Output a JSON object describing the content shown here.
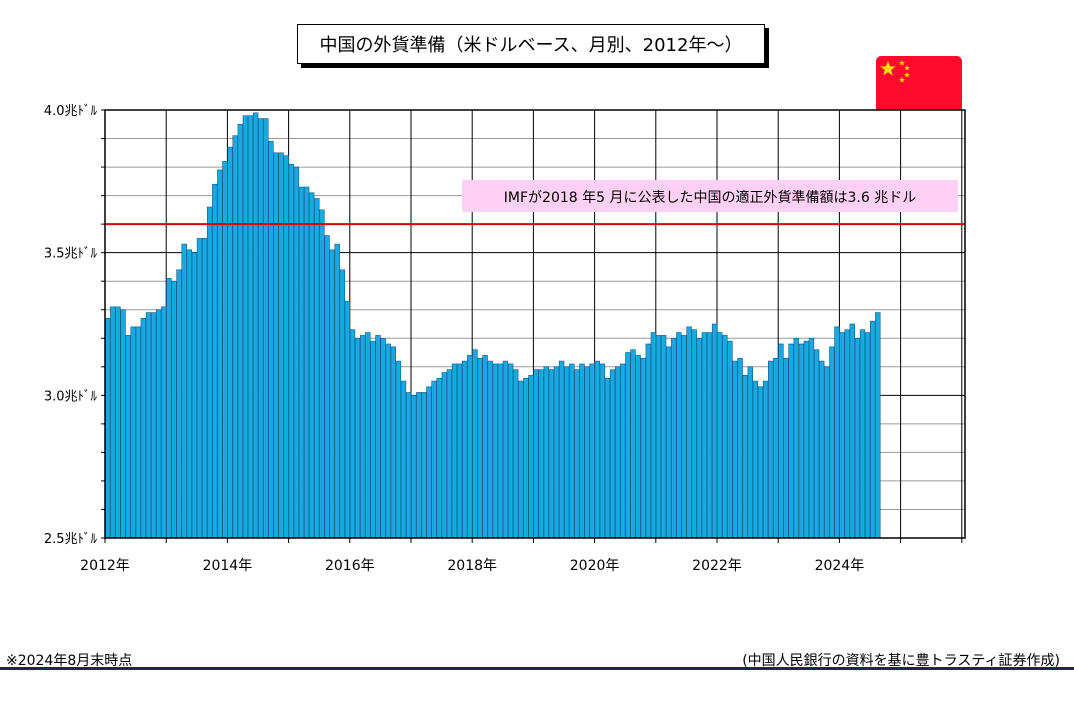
{
  "title": "中国の外貨準備（米ドルベース、月別、2012年〜）",
  "footnote": "※2024年8月末時点",
  "source": "(中国人民銀行の資料を基に豊トラスティ証券作成)",
  "colors": {
    "bar": "#1aa8e0",
    "bar_edge": "#0a5d8a",
    "ref_line": "#e00000",
    "annotation_bg": "#ffd0f5",
    "flag": "#ff0a2a",
    "flag_star": "#ffde00"
  },
  "chart_data": {
    "type": "bar",
    "title": "中国の外貨準備（米ドルベース、月別、2012年〜）",
    "xlabel": "",
    "ylabel": "",
    "ylim": [
      2.5,
      4.0
    ],
    "y_ticks": [
      {
        "value": 2.5,
        "label": "2.5兆ﾄﾞﾙ"
      },
      {
        "value": 3.0,
        "label": "3.0兆ﾄﾞﾙ"
      },
      {
        "value": 3.5,
        "label": "3.5兆ﾄﾞﾙ"
      },
      {
        "value": 4.0,
        "label": "4.0兆ﾄﾞﾙ"
      }
    ],
    "x_tick_labels": [
      "2012年",
      "2014年",
      "2016年",
      "2018年",
      "2020年",
      "2022年",
      "2024年"
    ],
    "grid": true,
    "reference_line": {
      "value": 3.6,
      "label": "IMFが2018 年5 月に公表した中国の適正外貨準備額は3.6 兆ドル"
    },
    "categories": [
      "2012-01",
      "2012-02",
      "2012-03",
      "2012-04",
      "2012-05",
      "2012-06",
      "2012-07",
      "2012-08",
      "2012-09",
      "2012-10",
      "2012-11",
      "2012-12",
      "2013-01",
      "2013-02",
      "2013-03",
      "2013-04",
      "2013-05",
      "2013-06",
      "2013-07",
      "2013-08",
      "2013-09",
      "2013-10",
      "2013-11",
      "2013-12",
      "2014-01",
      "2014-02",
      "2014-03",
      "2014-04",
      "2014-05",
      "2014-06",
      "2014-07",
      "2014-08",
      "2014-09",
      "2014-10",
      "2014-11",
      "2014-12",
      "2015-01",
      "2015-02",
      "2015-03",
      "2015-04",
      "2015-05",
      "2015-06",
      "2015-07",
      "2015-08",
      "2015-09",
      "2015-10",
      "2015-11",
      "2015-12",
      "2016-01",
      "2016-02",
      "2016-03",
      "2016-04",
      "2016-05",
      "2016-06",
      "2016-07",
      "2016-08",
      "2016-09",
      "2016-10",
      "2016-11",
      "2016-12",
      "2017-01",
      "2017-02",
      "2017-03",
      "2017-04",
      "2017-05",
      "2017-06",
      "2017-07",
      "2017-08",
      "2017-09",
      "2017-10",
      "2017-11",
      "2017-12",
      "2018-01",
      "2018-02",
      "2018-03",
      "2018-04",
      "2018-05",
      "2018-06",
      "2018-07",
      "2018-08",
      "2018-09",
      "2018-10",
      "2018-11",
      "2018-12",
      "2019-01",
      "2019-02",
      "2019-03",
      "2019-04",
      "2019-05",
      "2019-06",
      "2019-07",
      "2019-08",
      "2019-09",
      "2019-10",
      "2019-11",
      "2019-12",
      "2020-01",
      "2020-02",
      "2020-03",
      "2020-04",
      "2020-05",
      "2020-06",
      "2020-07",
      "2020-08",
      "2020-09",
      "2020-10",
      "2020-11",
      "2020-12",
      "2021-01",
      "2021-02",
      "2021-03",
      "2021-04",
      "2021-05",
      "2021-06",
      "2021-07",
      "2021-08",
      "2021-09",
      "2021-10",
      "2021-11",
      "2021-12",
      "2022-01",
      "2022-02",
      "2022-03",
      "2022-04",
      "2022-05",
      "2022-06",
      "2022-07",
      "2022-08",
      "2022-09",
      "2022-10",
      "2022-11",
      "2022-12",
      "2023-01",
      "2023-02",
      "2023-03",
      "2023-04",
      "2023-05",
      "2023-06",
      "2023-07",
      "2023-08",
      "2023-09",
      "2023-10",
      "2023-11",
      "2023-12",
      "2024-01",
      "2024-02",
      "2024-03",
      "2024-04",
      "2024-05",
      "2024-06",
      "2024-07",
      "2024-08"
    ],
    "values": [
      3.27,
      3.31,
      3.31,
      3.3,
      3.21,
      3.24,
      3.24,
      3.27,
      3.29,
      3.29,
      3.3,
      3.31,
      3.41,
      3.4,
      3.44,
      3.53,
      3.51,
      3.5,
      3.55,
      3.55,
      3.66,
      3.74,
      3.79,
      3.82,
      3.87,
      3.91,
      3.95,
      3.98,
      3.98,
      3.99,
      3.97,
      3.97,
      3.89,
      3.85,
      3.85,
      3.84,
      3.81,
      3.8,
      3.73,
      3.73,
      3.71,
      3.69,
      3.65,
      3.56,
      3.51,
      3.53,
      3.44,
      3.33,
      3.23,
      3.2,
      3.21,
      3.22,
      3.19,
      3.21,
      3.2,
      3.18,
      3.17,
      3.12,
      3.05,
      3.01,
      3.0,
      3.01,
      3.01,
      3.03,
      3.05,
      3.06,
      3.08,
      3.09,
      3.11,
      3.11,
      3.12,
      3.14,
      3.16,
      3.13,
      3.14,
      3.12,
      3.11,
      3.11,
      3.12,
      3.11,
      3.09,
      3.05,
      3.06,
      3.07,
      3.09,
      3.09,
      3.1,
      3.09,
      3.1,
      3.12,
      3.1,
      3.11,
      3.09,
      3.11,
      3.1,
      3.11,
      3.12,
      3.11,
      3.06,
      3.09,
      3.1,
      3.11,
      3.15,
      3.16,
      3.14,
      3.13,
      3.18,
      3.22,
      3.21,
      3.21,
      3.17,
      3.2,
      3.22,
      3.21,
      3.24,
      3.23,
      3.2,
      3.22,
      3.22,
      3.25,
      3.22,
      3.21,
      3.19,
      3.12,
      3.13,
      3.07,
      3.1,
      3.05,
      3.03,
      3.05,
      3.12,
      3.13,
      3.18,
      3.13,
      3.18,
      3.2,
      3.18,
      3.19,
      3.2,
      3.16,
      3.12,
      3.1,
      3.17,
      3.24,
      3.22,
      3.23,
      3.25,
      3.2,
      3.23,
      3.22,
      3.26,
      3.29
    ]
  }
}
